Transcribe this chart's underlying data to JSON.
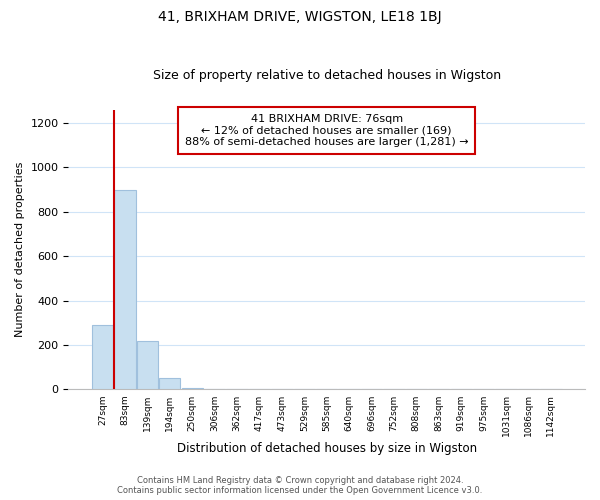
{
  "title": "41, BRIXHAM DRIVE, WIGSTON, LE18 1BJ",
  "subtitle": "Size of property relative to detached houses in Wigston",
  "xlabel": "Distribution of detached houses by size in Wigston",
  "ylabel": "Number of detached properties",
  "bar_labels": [
    "27sqm",
    "83sqm",
    "139sqm",
    "194sqm",
    "250sqm",
    "306sqm",
    "362sqm",
    "417sqm",
    "473sqm",
    "529sqm",
    "585sqm",
    "640sqm",
    "696sqm",
    "752sqm",
    "808sqm",
    "863sqm",
    "919sqm",
    "975sqm",
    "1031sqm",
    "1086sqm",
    "1142sqm"
  ],
  "bar_values": [
    290,
    900,
    220,
    50,
    5,
    0,
    0,
    0,
    0,
    0,
    0,
    0,
    0,
    0,
    0,
    0,
    0,
    0,
    0,
    0,
    0
  ],
  "bar_color": "#c8dff0",
  "bar_edge_color": "#a0c0dd",
  "ylim": [
    0,
    1260
  ],
  "annotation_title": "41 BRIXHAM DRIVE: 76sqm",
  "annotation_line1": "← 12% of detached houses are smaller (169)",
  "annotation_line2": "88% of semi-detached houses are larger (1,281) →",
  "annotation_box_color": "#ffffff",
  "annotation_box_edge": "#cc0000",
  "footer_line1": "Contains HM Land Registry data © Crown copyright and database right 2024.",
  "footer_line2": "Contains public sector information licensed under the Open Government Licence v3.0.",
  "vline_color": "#cc0000",
  "grid_color": "#d0e4f7",
  "vline_x": 0.5
}
